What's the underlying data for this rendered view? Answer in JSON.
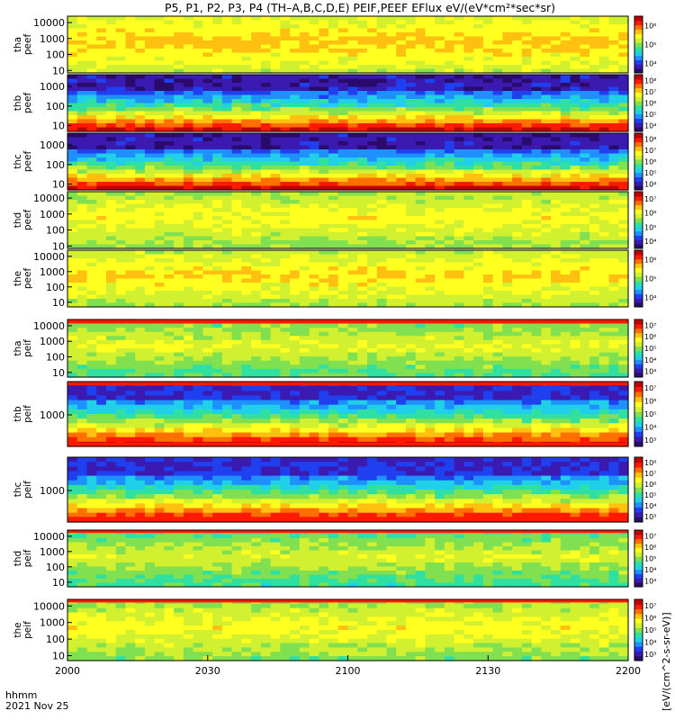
{
  "chart_data": {
    "type": "heatmap",
    "title": "P5, P1, P2, P3, P4 (TH–A,B,C,D,E) PEIF,PEEF EFlux eV/(eV*cm²*sec*sr)",
    "x_ticks": [
      "2000",
      "2030",
      "2100",
      "2130",
      "2200"
    ],
    "x_time_range": [
      "20:00",
      "22:00"
    ],
    "time_units": "hhmm",
    "date": "2021 Nov 25",
    "colorbar_label": "[eV/(cm^2-s-sr-eV)]",
    "colormap": [
      "#2a0a6a",
      "#3a1ab0",
      "#2040f0",
      "#1e90ff",
      "#20d0e8",
      "#30e0a0",
      "#80e050",
      "#d0f030",
      "#ffff20",
      "#ffc010",
      "#ff7000",
      "#ff1a00",
      "#c00000"
    ],
    "panels": [
      {
        "name": "tha peef",
        "y_ticks": [
          "10000",
          "1000",
          "100",
          "10"
        ],
        "y_range": [
          7,
          25000
        ],
        "y_scale": "log",
        "cb_ticks": [
          "10⁴",
          "10⁵",
          "10⁶"
        ],
        "level_lo": 0.56,
        "level_hi": 0.72,
        "bands": []
      },
      {
        "name": "thb peef",
        "y_ticks": [
          "1000",
          "100",
          "10"
        ],
        "y_range": [
          5,
          4000
        ],
        "y_scale": "log",
        "cb_ticks": [
          "10⁴",
          "10⁵",
          "10⁶",
          "10⁷",
          "10⁸"
        ],
        "level_lo": 0.1,
        "level_hi": 0.96,
        "bands": []
      },
      {
        "name": "thc peef",
        "y_ticks": [
          "1000",
          "100",
          "10"
        ],
        "y_range": [
          5,
          4000
        ],
        "y_scale": "log",
        "cb_ticks": [
          "10⁴",
          "10⁵",
          "10⁶",
          "10⁷",
          "10⁸"
        ],
        "level_lo": 0.1,
        "level_hi": 0.96,
        "bands": []
      },
      {
        "name": "thd peef",
        "y_ticks": [
          "10000",
          "1000",
          "100",
          "10"
        ],
        "y_range": [
          7,
          25000
        ],
        "y_scale": "log",
        "cb_ticks": [
          "10⁴",
          "10⁵",
          "10⁶",
          "10⁷"
        ],
        "level_lo": 0.5,
        "level_hi": 0.66,
        "bands": []
      },
      {
        "name": "the peef",
        "y_ticks": [
          "10000",
          "1000",
          "100",
          "10"
        ],
        "y_range": [
          5,
          25000
        ],
        "y_scale": "log",
        "cb_ticks": [
          "10⁴",
          "10⁵",
          "10⁶"
        ],
        "level_lo": 0.52,
        "level_hi": 0.7,
        "bands": []
      },
      {
        "name": "tha peif",
        "y_ticks": [
          "10000",
          "1000",
          "100",
          "10"
        ],
        "y_range": [
          5,
          25000
        ],
        "y_scale": "log",
        "cb_ticks": [
          "10³",
          "10⁴",
          "10⁵",
          "10⁶",
          "10⁷"
        ],
        "level_lo": 0.42,
        "level_hi": 0.62,
        "bands": [
          {
            "at": 0.0,
            "h": 0.07
          }
        ]
      },
      {
        "name": "thb peif",
        "y_ticks": [
          "1000"
        ],
        "y_range": [
          40,
          30000
        ],
        "y_scale": "log",
        "cb_ticks": [
          "10³",
          "10⁴",
          "10⁵",
          "10⁶",
          "10⁷"
        ],
        "level_lo": 0.14,
        "level_hi": 0.96,
        "bands": [
          {
            "at": 0.0,
            "h": 0.06
          },
          {
            "at": 0.94,
            "h": 0.06
          }
        ]
      },
      {
        "name": "thc peif",
        "y_ticks": [
          "1000"
        ],
        "y_range": [
          40,
          30000
        ],
        "y_scale": "log",
        "cb_ticks": [
          "10³",
          "10⁴",
          "10⁵",
          "10⁶",
          "10⁷",
          "10⁸"
        ],
        "level_lo": 0.14,
        "level_hi": 0.96,
        "bands": [
          {
            "at": 0.92,
            "h": 0.08
          }
        ]
      },
      {
        "name": "thd peif",
        "y_ticks": [
          "10000",
          "1000",
          "100",
          "10"
        ],
        "y_range": [
          5,
          25000
        ],
        "y_scale": "log",
        "cb_ticks": [
          "10³",
          "10⁴",
          "10⁵",
          "10⁶",
          "10⁷"
        ],
        "level_lo": 0.4,
        "level_hi": 0.6,
        "bands": [
          {
            "at": 0.0,
            "h": 0.05
          }
        ]
      },
      {
        "name": "the peif",
        "y_ticks": [
          "10000",
          "1000",
          "100",
          "10"
        ],
        "y_range": [
          5,
          25000
        ],
        "y_scale": "log",
        "cb_ticks": [
          "10³",
          "10⁴",
          "10⁵",
          "10⁶",
          "10⁷"
        ],
        "level_lo": 0.48,
        "level_hi": 0.66,
        "bands": [
          {
            "at": 0.0,
            "h": 0.05
          }
        ]
      }
    ]
  }
}
